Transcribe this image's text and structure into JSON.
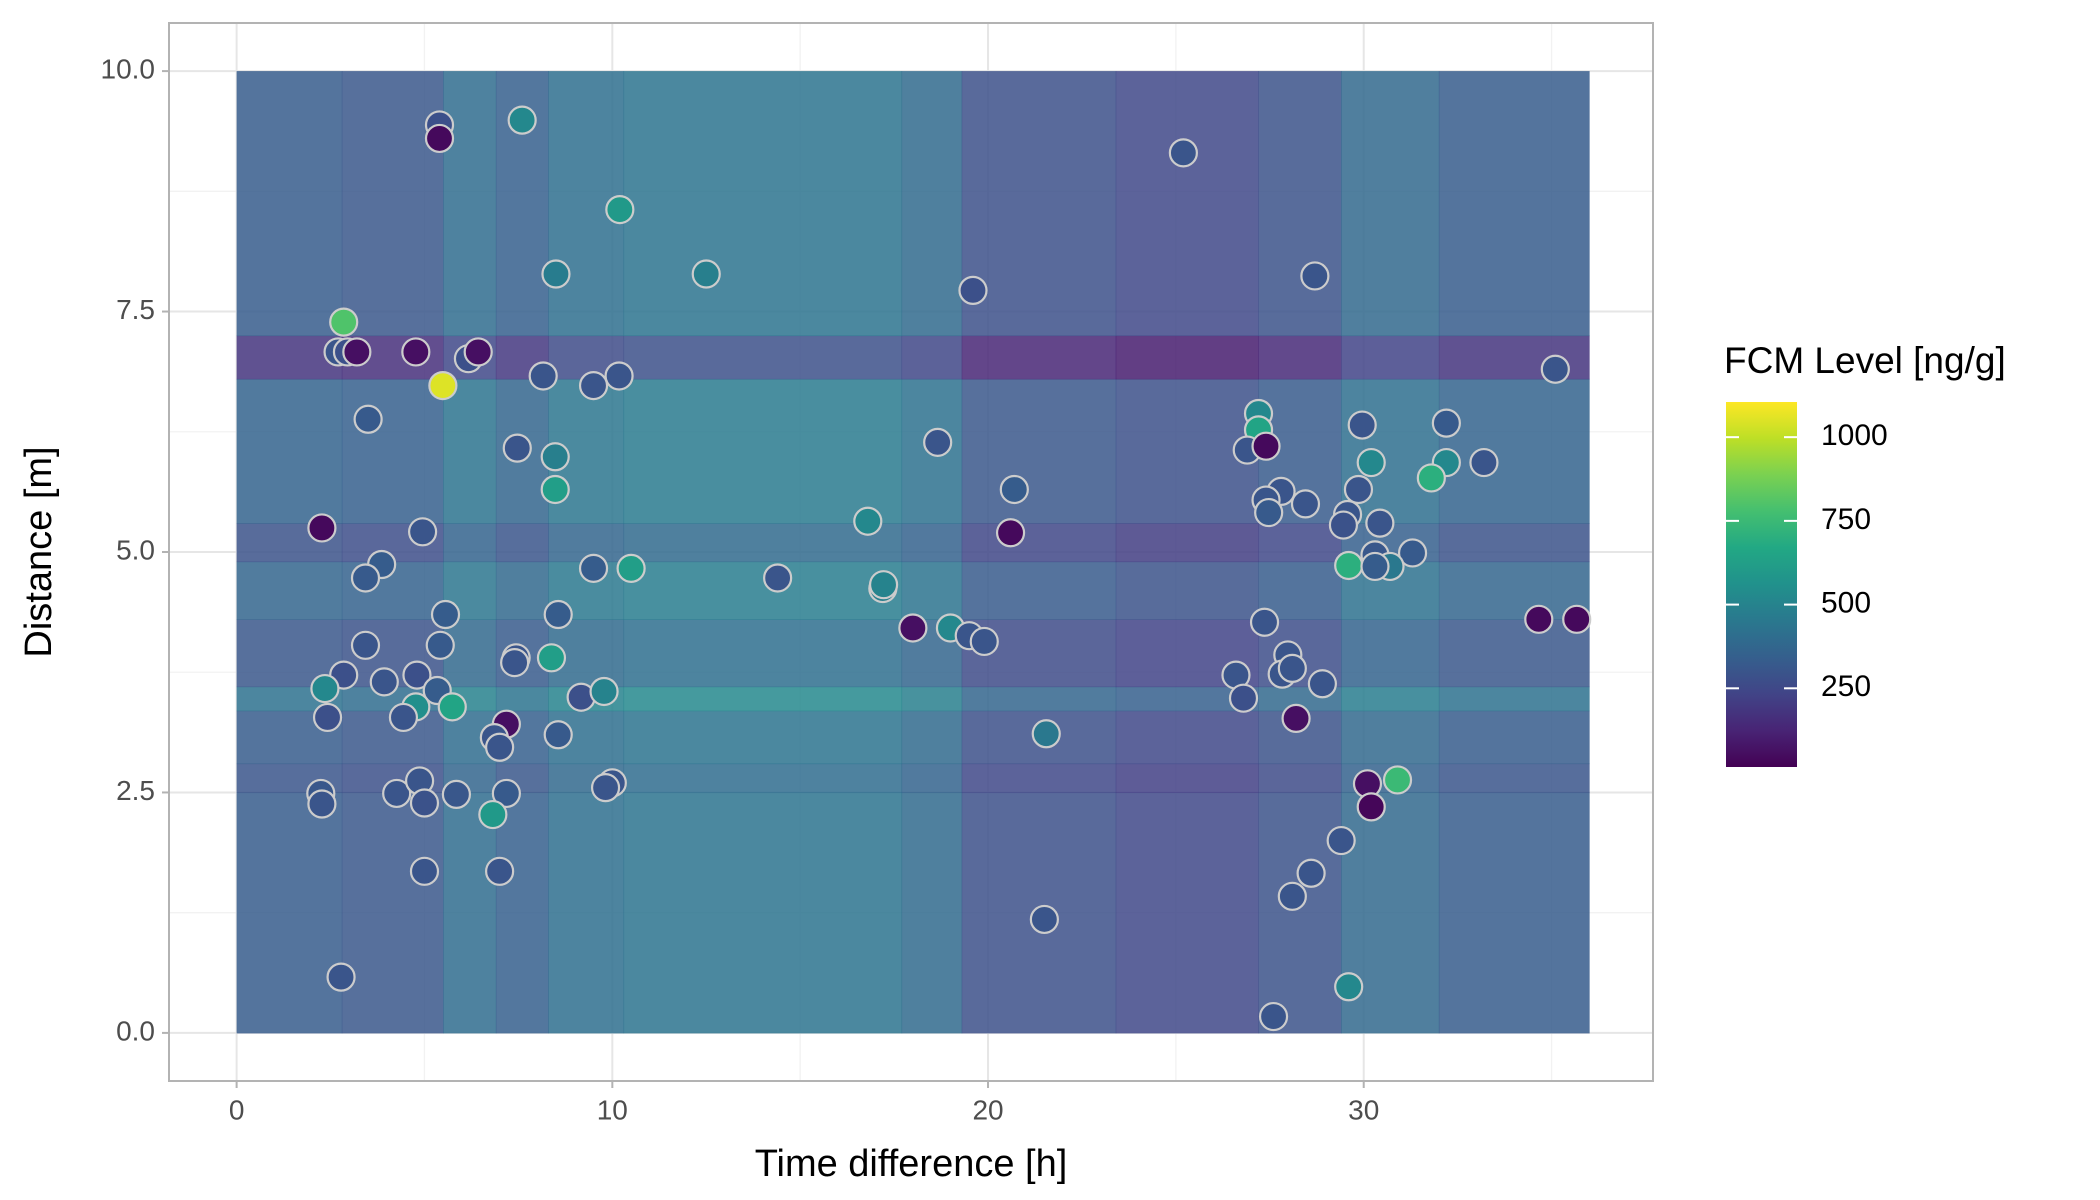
{
  "chart_data": {
    "type": "scatter",
    "x_label": "Time difference [h]",
    "y_label": "Distance [m]",
    "xlim": [
      -1.8,
      37.7
    ],
    "ylim": [
      -0.5,
      10.5
    ],
    "xticks": [
      0,
      10,
      20,
      30
    ],
    "yticks": [
      {
        "value": 0,
        "label": "0.0"
      },
      {
        "value": 2.5,
        "label": "2.5"
      },
      {
        "value": 5,
        "label": "5.0"
      },
      {
        "value": 7.5,
        "label": "7.5"
      },
      {
        "value": 10,
        "label": "10.0"
      }
    ],
    "grid": true,
    "point_stroke": "#cccccc",
    "colorbar": {
      "title": "FCM Level [ng/g]",
      "lim": [
        15,
        1105
      ],
      "ticks": [
        250,
        500,
        750,
        1000
      ],
      "colormap": "viridis"
    },
    "heatmap": {
      "x_edges": [
        0,
        2.8,
        5.5,
        6.9,
        8.3,
        10.3,
        17.7,
        19.3,
        23.4,
        27.2,
        29.4,
        32,
        36
      ],
      "y_edges": [
        0,
        2.5,
        2.8,
        3.35,
        3.6,
        4.3,
        4.9,
        5.3,
        6.8,
        7.25,
        10
      ],
      "values": [
        [
          330,
          310,
          400,
          340,
          410,
          430,
          390,
          280,
          250,
          290,
          380,
          330
        ],
        [
          300,
          280,
          370,
          310,
          380,
          400,
          360,
          250,
          220,
          260,
          350,
          300
        ],
        [
          330,
          310,
          400,
          340,
          410,
          430,
          390,
          280,
          250,
          290,
          380,
          330
        ],
        [
          420,
          400,
          490,
          430,
          500,
          520,
          480,
          370,
          340,
          380,
          470,
          420
        ],
        [
          310,
          290,
          380,
          320,
          390,
          410,
          370,
          260,
          230,
          270,
          360,
          310
        ],
        [
          370,
          350,
          440,
          380,
          450,
          470,
          430,
          320,
          290,
          330,
          420,
          370
        ],
        [
          290,
          270,
          360,
          300,
          370,
          390,
          350,
          240,
          210,
          250,
          340,
          290
        ],
        [
          360,
          340,
          430,
          370,
          440,
          460,
          420,
          310,
          280,
          320,
          410,
          360
        ],
        [
          180,
          160,
          250,
          190,
          260,
          280,
          240,
          130,
          100,
          140,
          230,
          180
        ],
        [
          330,
          310,
          400,
          340,
          410,
          430,
          390,
          280,
          250,
          290,
          380,
          330
        ]
      ]
    },
    "x": [
      5.4,
      5.4,
      7.6,
      10.2,
      12.5,
      8.5,
      25.2,
      19.6,
      28.7,
      2.85,
      2.7,
      2.95,
      3.2,
      4.77,
      6.17,
      6.43,
      5.49,
      8.16,
      9.5,
      10.18,
      35.1,
      3.5,
      7.47,
      8.48,
      8.48,
      18.66,
      20.7,
      16.8,
      2.27,
      4.95,
      20.6,
      3.86,
      3.43,
      9.5,
      10.5,
      14.4,
      17.2,
      17.22,
      5.56,
      8.56,
      18.0,
      19.0,
      19.5,
      19.9,
      3.43,
      5.42,
      7.44,
      7.4,
      8.38,
      2.85,
      3.93,
      4.8,
      2.35,
      5.34,
      4.77,
      5.74,
      4.44,
      2.42,
      9.17,
      9.78,
      7.18,
      6.86,
      7.0,
      8.56,
      2.24,
      2.27,
      4.26,
      4.87,
      5.0,
      5.85,
      7.18,
      6.82,
      10.0,
      9.82,
      5.0,
      7.0,
      2.78,
      21.55,
      21.5,
      27.2,
      27.2,
      26.9,
      27.4,
      29.96,
      32.2,
      32.2,
      30.2,
      33.2,
      31.8,
      27.8,
      29.86,
      27.4,
      27.47,
      28.45,
      29.57,
      29.46,
      30.43,
      30.3,
      31.3,
      29.6,
      30.7,
      30.3,
      34.66,
      35.67,
      27.36,
      27.98,
      27.83,
      28.1,
      26.6,
      26.8,
      28.9,
      28.2,
      30.1,
      30.2,
      30.9,
      29.4,
      28.6,
      28.1,
      29.6,
      27.6
    ],
    "y": [
      9.44,
      9.3,
      9.49,
      8.56,
      7.89,
      7.89,
      9.15,
      7.72,
      7.87,
      7.39,
      7.08,
      7.08,
      7.08,
      7.08,
      7.01,
      7.08,
      6.73,
      6.83,
      6.73,
      6.83,
      6.9,
      6.38,
      6.08,
      5.99,
      5.65,
      6.14,
      5.65,
      5.32,
      5.25,
      5.21,
      5.2,
      4.87,
      4.73,
      4.83,
      4.83,
      4.73,
      4.62,
      4.66,
      4.35,
      4.35,
      4.21,
      4.21,
      4.13,
      4.07,
      4.03,
      4.03,
      3.9,
      3.85,
      3.9,
      3.72,
      3.65,
      3.72,
      3.58,
      3.56,
      3.39,
      3.39,
      3.28,
      3.28,
      3.49,
      3.55,
      3.21,
      3.07,
      2.97,
      3.1,
      2.49,
      2.38,
      2.49,
      2.62,
      2.39,
      2.48,
      2.49,
      2.27,
      2.6,
      2.55,
      1.68,
      1.68,
      0.58,
      3.11,
      1.18,
      6.44,
      6.27,
      6.06,
      6.1,
      6.32,
      6.34,
      5.93,
      5.93,
      5.93,
      5.77,
      5.63,
      5.65,
      5.54,
      5.41,
      5.5,
      5.39,
      5.28,
      5.3,
      4.97,
      4.99,
      4.86,
      4.85,
      4.85,
      4.3,
      4.3,
      4.27,
      3.93,
      3.73,
      3.79,
      3.72,
      3.48,
      3.63,
      3.27,
      2.59,
      2.35,
      2.63,
      2.0,
      1.66,
      1.42,
      0.48,
      0.17
    ],
    "values": [
      280,
      40,
      520,
      600,
      480,
      470,
      300,
      280,
      300,
      800,
      300,
      280,
      60,
      60,
      280,
      60,
      1050,
      300,
      300,
      300,
      300,
      320,
      300,
      480,
      620,
      300,
      330,
      520,
      40,
      300,
      40,
      330,
      320,
      330,
      620,
      300,
      480,
      500,
      330,
      330,
      60,
      520,
      300,
      300,
      300,
      320,
      300,
      300,
      620,
      280,
      300,
      280,
      520,
      330,
      550,
      650,
      300,
      280,
      280,
      500,
      60,
      300,
      300,
      320,
      310,
      300,
      300,
      300,
      290,
      310,
      320,
      600,
      300,
      300,
      300,
      300,
      300,
      450,
      300,
      520,
      650,
      300,
      40,
      300,
      320,
      520,
      520,
      300,
      700,
      300,
      300,
      300,
      320,
      300,
      300,
      290,
      300,
      310,
      320,
      700,
      450,
      330,
      40,
      40,
      300,
      300,
      300,
      300,
      300,
      280,
      300,
      60,
      60,
      30,
      750,
      300,
      300,
      300,
      520,
      300
    ]
  }
}
